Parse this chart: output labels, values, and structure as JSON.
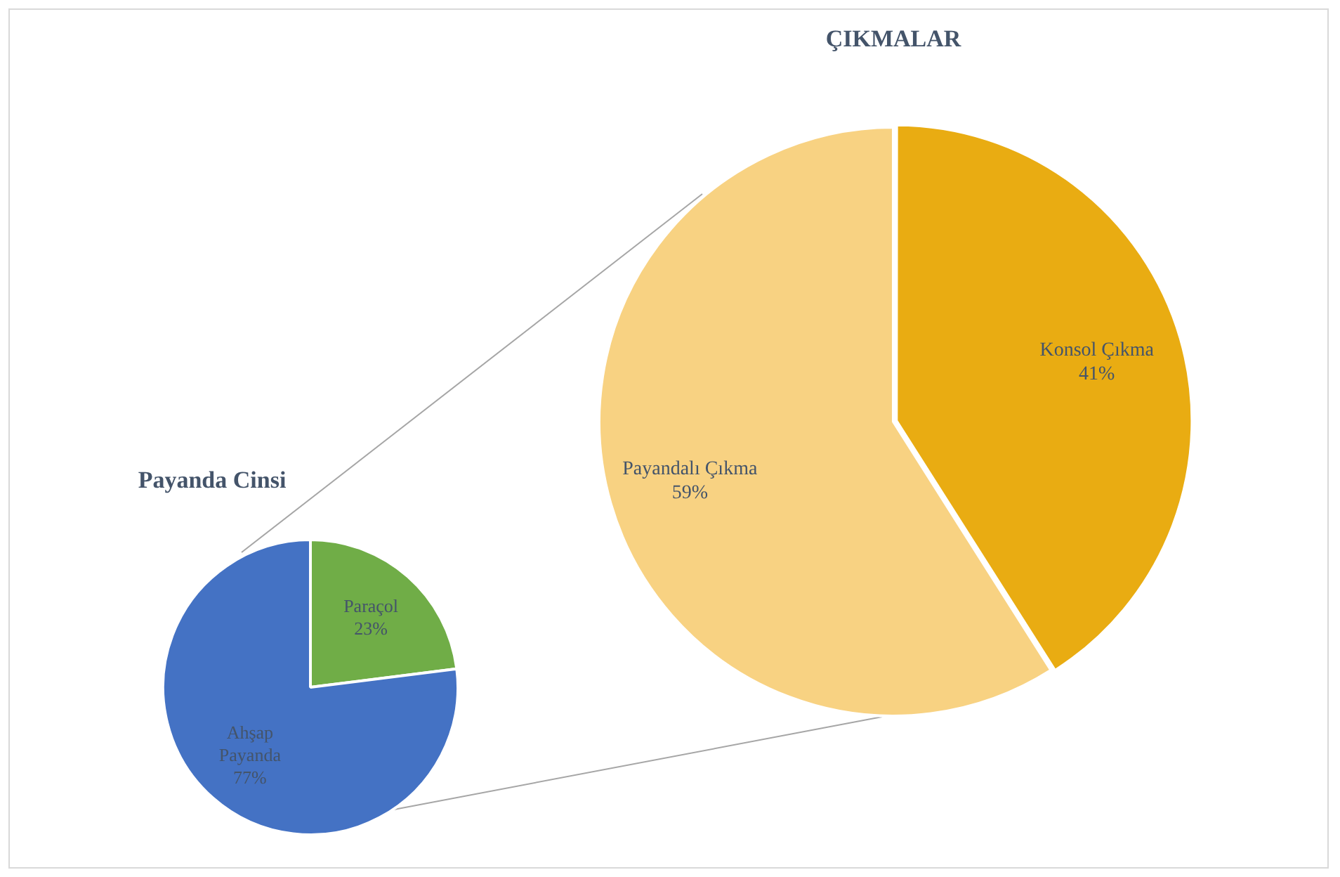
{
  "chart_data": [
    {
      "type": "pie",
      "title": "ÇIKMALAR",
      "categories": [
        "Konsol Çıkma",
        "Payandalı Çıkma"
      ],
      "values": [
        41,
        59
      ],
      "value_labels": [
        "41%",
        "59%"
      ],
      "colors": [
        "#e9ac12",
        "#f8d282"
      ],
      "legend": false
    },
    {
      "type": "pie",
      "title": "Payanda Cinsi",
      "categories": [
        "Paraçol",
        "Ahşap Payanda"
      ],
      "values": [
        23,
        77
      ],
      "value_labels": [
        "23%",
        "77%"
      ],
      "colors": [
        "#70ad47",
        "#4472c4"
      ],
      "legend": false
    }
  ]
}
